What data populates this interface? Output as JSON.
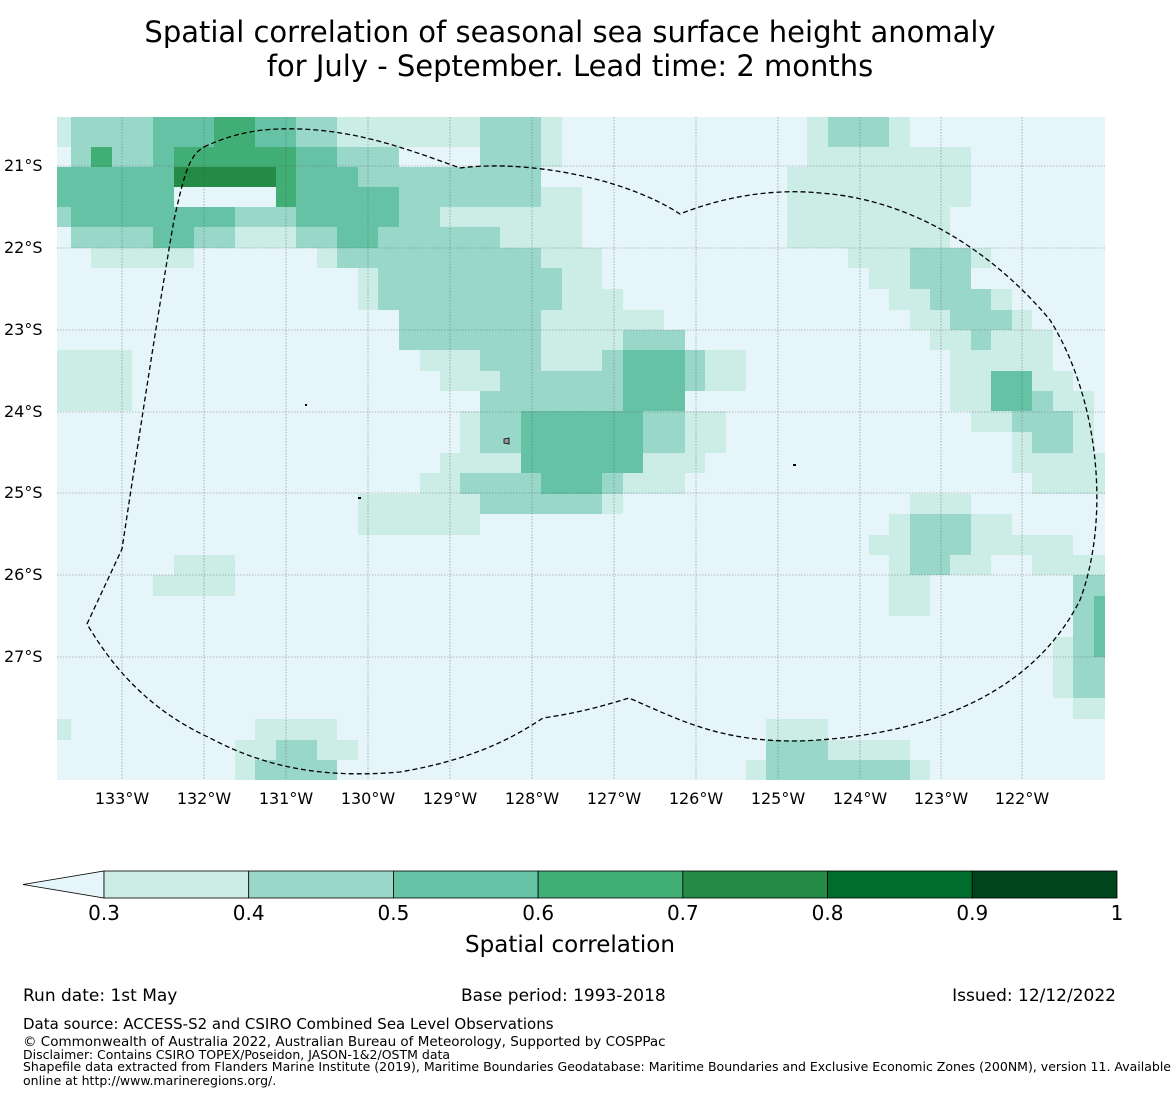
{
  "title": {
    "line1": "Spatial correlation of seasonal sea surface height anomaly",
    "line2": "for July - September. Lead time: 2 months"
  },
  "map": {
    "lat_labels": [
      "21°S",
      "22°S",
      "23°S",
      "24°S",
      "25°S",
      "26°S",
      "27°S"
    ],
    "lon_labels": [
      "133°W",
      "132°W",
      "131°W",
      "130°W",
      "129°W",
      "128°W",
      "127°W",
      "126°W",
      "125°W",
      "124°W",
      "123°W",
      "122°W"
    ],
    "background_color": "#e5f5f9",
    "boundary_style": "dashed",
    "grid": true
  },
  "colorbar": {
    "ticks": [
      "0.3",
      "0.4",
      "0.5",
      "0.6",
      "0.7",
      "0.8",
      "0.9",
      "1"
    ],
    "colors": [
      "#ccece6",
      "#99d8c9",
      "#66c2a4",
      "#41ae76",
      "#238b45",
      "#006d2c",
      "#00441b"
    ],
    "under_color": "#e5f5f9",
    "label": "Spatial correlation"
  },
  "footer": {
    "run_date": "Run date: 1st May",
    "base_period": "Base period: 1993-2018",
    "issued": "Issued: 12/12/2022",
    "data_source": "Data source: ACCESS-S2 and CSIRO Combined Sea Level Observations",
    "copyright": "© Commonwealth of Australia 2022, Australian Bureau of Meteorology, Supported by COSPPac",
    "disclaimer": "Disclaimer: Contains CSIRO TOPEX/Poseidon, JASON-1&2/OSTM data",
    "shapefile1": "Shapefile data extracted from Flanders Marine Institute (2019), Maritime Boundaries Geodatabase: Maritime Boundaries and Exclusive Economic Zones (200NM), version 11. Available",
    "shapefile2": "online at http://www.marineregions.org/."
  }
}
